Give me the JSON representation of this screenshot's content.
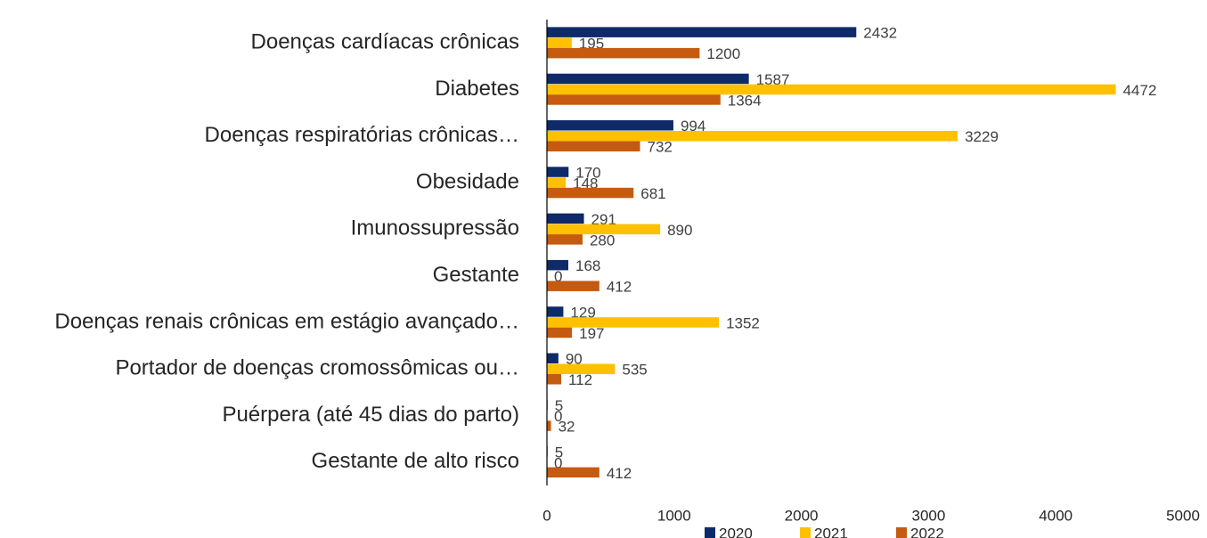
{
  "chart_data": {
    "type": "bar",
    "orientation": "horizontal",
    "categories": [
      "Doenças cardíacas crônicas",
      "Diabetes",
      "Doenças respiratórias crônicas…",
      "Obesidade",
      "Imunossupressão",
      "Gestante",
      "Doenças renais crônicas em estágio avançado…",
      "Portador de doenças cromossômicas ou…",
      "Puérpera (até 45 dias do parto)",
      "Gestante de alto risco"
    ],
    "series": [
      {
        "name": "2020",
        "color": "#0e2a69",
        "values": [
          2432,
          1587,
          994,
          170,
          291,
          168,
          129,
          90,
          5,
          5
        ]
      },
      {
        "name": "2021",
        "color": "#ffc000",
        "values": [
          195,
          4472,
          3229,
          148,
          890,
          0,
          1352,
          535,
          0,
          0
        ]
      },
      {
        "name": "2022",
        "color": "#c55a11",
        "values": [
          1200,
          1364,
          732,
          681,
          280,
          412,
          197,
          112,
          32,
          412
        ]
      }
    ],
    "xlim": [
      0,
      5000
    ],
    "xticks": [
      0,
      1000,
      2000,
      3000,
      4000,
      5000
    ],
    "legend": "bottom"
  }
}
